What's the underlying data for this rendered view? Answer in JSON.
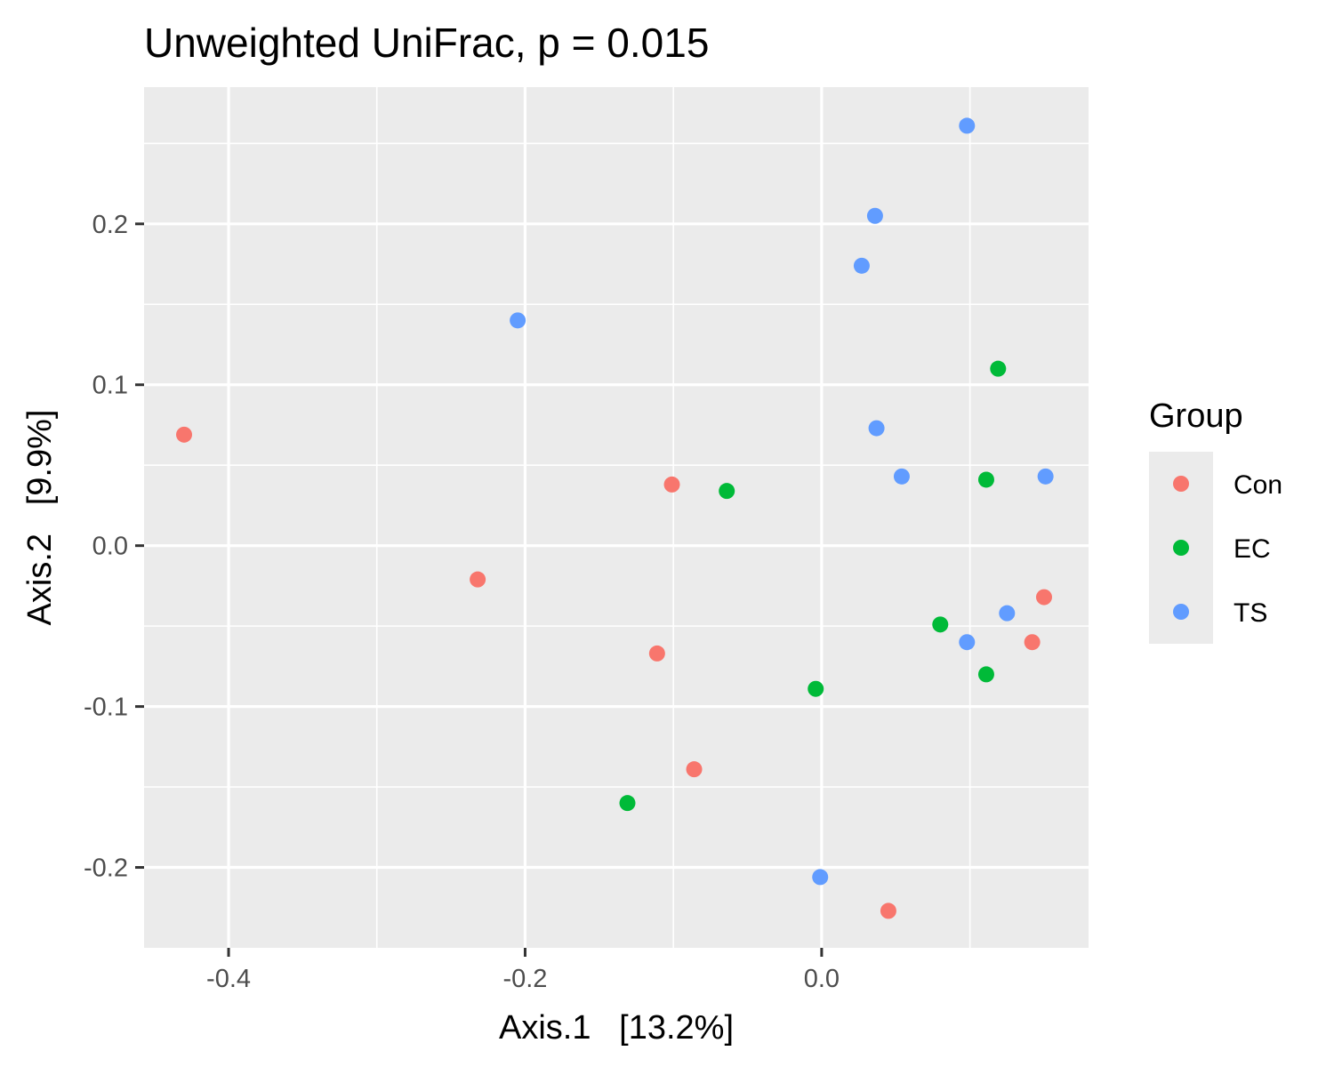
{
  "chart_data": {
    "type": "scatter",
    "title": "Unweighted UniFrac, p = 0.015",
    "xlabel": "Axis.1   [13.2%]",
    "ylabel": "Axis.2   [9.9%]",
    "xlim": [
      -0.457,
      0.18
    ],
    "ylim": [
      -0.25,
      0.285
    ],
    "xticks": [
      -0.4,
      -0.2,
      0.0
    ],
    "xtick_labels": [
      "-0.4",
      "-0.2",
      "0.0"
    ],
    "yticks": [
      -0.2,
      -0.1,
      0.0,
      0.1,
      0.2
    ],
    "ytick_labels": [
      "-0.2",
      "-0.1",
      "0.0",
      "0.1",
      "0.2"
    ],
    "grid": true,
    "background": "#ebebeb",
    "legend": {
      "title": "Group",
      "position": "right"
    },
    "series": [
      {
        "name": "Con",
        "color": "#f8766d",
        "points": [
          {
            "x": -0.43,
            "y": 0.069
          },
          {
            "x": -0.232,
            "y": -0.021
          },
          {
            "x": -0.101,
            "y": 0.038
          },
          {
            "x": -0.111,
            "y": -0.067
          },
          {
            "x": -0.086,
            "y": -0.139
          },
          {
            "x": 0.045,
            "y": -0.227
          },
          {
            "x": 0.142,
            "y": -0.06
          },
          {
            "x": 0.15,
            "y": -0.032
          }
        ]
      },
      {
        "name": "EC",
        "color": "#00ba38",
        "points": [
          {
            "x": -0.064,
            "y": 0.034
          },
          {
            "x": -0.131,
            "y": -0.16
          },
          {
            "x": -0.004,
            "y": -0.089
          },
          {
            "x": 0.08,
            "y": -0.049
          },
          {
            "x": 0.111,
            "y": -0.08
          },
          {
            "x": 0.111,
            "y": 0.041
          },
          {
            "x": 0.119,
            "y": 0.11
          }
        ]
      },
      {
        "name": "TS",
        "color": "#619cff",
        "points": [
          {
            "x": -0.205,
            "y": 0.14
          },
          {
            "x": 0.098,
            "y": 0.261
          },
          {
            "x": 0.036,
            "y": 0.205
          },
          {
            "x": 0.027,
            "y": 0.174
          },
          {
            "x": 0.037,
            "y": 0.073
          },
          {
            "x": 0.054,
            "y": 0.043
          },
          {
            "x": 0.151,
            "y": 0.043
          },
          {
            "x": 0.125,
            "y": -0.042
          },
          {
            "x": 0.098,
            "y": -0.06
          },
          {
            "x": -0.001,
            "y": -0.206
          }
        ]
      }
    ]
  }
}
